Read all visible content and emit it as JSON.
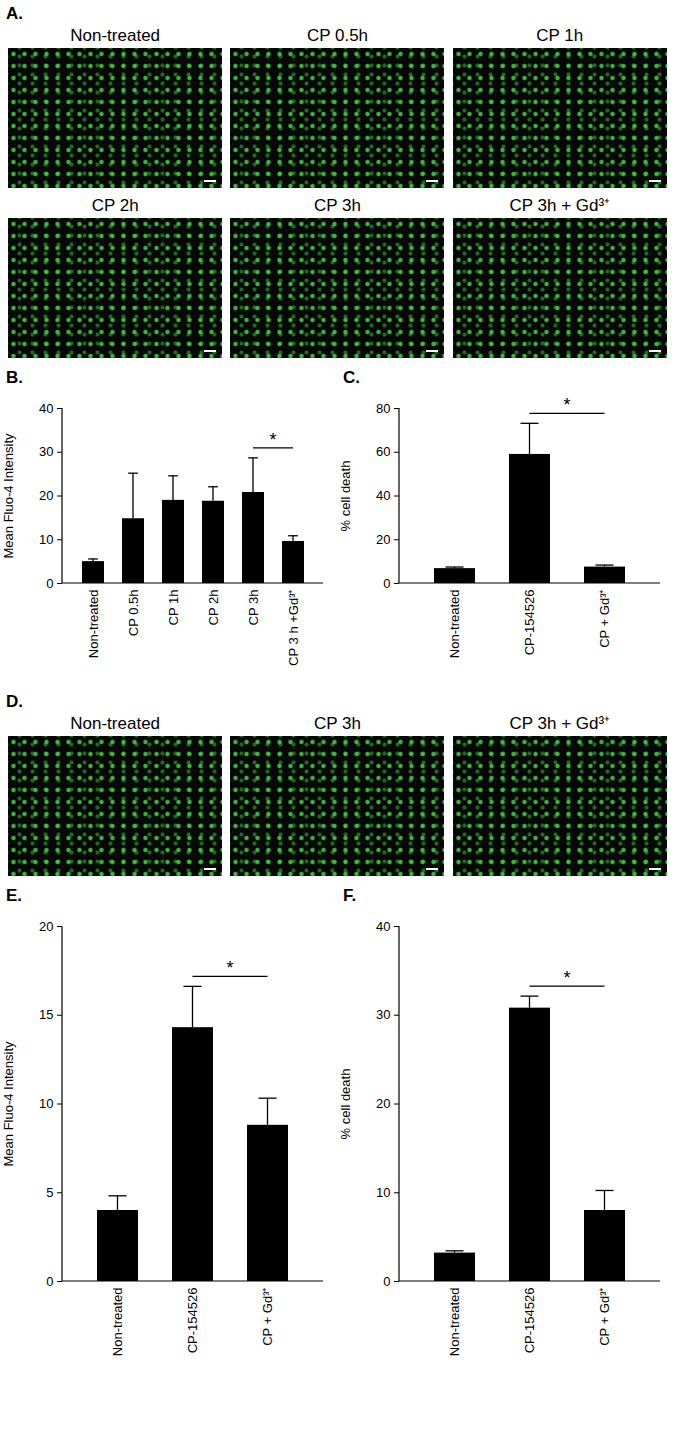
{
  "image_panels": [
    {
      "label": "A.",
      "images": [
        "Non-treated",
        "CP 0.5h",
        "CP 1h",
        "CP 2h",
        "CP 3h",
        "CP 3h + Gd³⁺"
      ]
    },
    {
      "label": "D.",
      "images": [
        "Non-treated",
        "CP 3h",
        "CP 3h + Gd³⁺"
      ]
    }
  ],
  "chart_data": [
    {
      "type": "bar",
      "title": "B.",
      "y_label": "Mean Fluo-4 Intensity",
      "categories": [
        "Non-treated",
        "CP 0.5h",
        "CP 1h",
        "CP 2h",
        "CP 3h",
        "CP 3 h +Gd³⁺"
      ],
      "values": [
        5,
        14.8,
        19,
        18.8,
        20.8,
        9.6
      ],
      "errors": [
        0.5,
        10.3,
        5.5,
        3.2,
        7.8,
        1.2
      ],
      "color": "#000000",
      "ylim": [
        0,
        40
      ],
      "yticks": [
        0,
        10,
        20,
        30,
        40
      ],
      "annotations": [
        {
          "text": "*",
          "between": [
            "CP 3h",
            "CP 3 h +Gd³⁺"
          ]
        }
      ]
    },
    {
      "type": "bar",
      "title": "C.",
      "y_label": "% cell death",
      "categories": [
        "Non-treated",
        "CP-154526",
        "CP + Gd³⁺"
      ],
      "values": [
        6.8,
        59,
        7.5
      ],
      "errors": [
        0.5,
        14,
        0.7
      ],
      "color": "#000000",
      "ylim": [
        0,
        80
      ],
      "yticks": [
        0,
        20,
        40,
        60,
        80
      ],
      "annotations": [
        {
          "text": "*",
          "between": [
            "CP-154526",
            "CP + Gd³⁺"
          ]
        }
      ]
    },
    {
      "type": "bar",
      "title": "E.",
      "y_label": "Mean Fluo-4 Intensity",
      "categories": [
        "Non-treated",
        "CP-154526",
        "CP + Gd³⁺"
      ],
      "values": [
        4,
        14.3,
        8.8
      ],
      "errors": [
        0.8,
        2.3,
        1.5
      ],
      "color": "#000000",
      "ylim": [
        0,
        20
      ],
      "yticks": [
        0,
        5,
        10,
        15,
        20
      ],
      "annotations": [
        {
          "text": "*",
          "between": [
            "CP-154526",
            "CP + Gd³⁺"
          ]
        }
      ]
    },
    {
      "type": "bar",
      "title": "F.",
      "y_label": "% cell death",
      "categories": [
        "Non-treated",
        "CP-154526",
        "CP + Gd³⁺"
      ],
      "values": [
        3.2,
        30.8,
        8
      ],
      "errors": [
        0.2,
        1.3,
        2.2
      ],
      "color": "#000000",
      "ylim": [
        0,
        40
      ],
      "yticks": [
        0,
        10,
        20,
        30,
        40
      ],
      "annotations": [
        {
          "text": "*",
          "between": [
            "CP-154526",
            "CP + Gd³⁺"
          ]
        }
      ]
    }
  ]
}
